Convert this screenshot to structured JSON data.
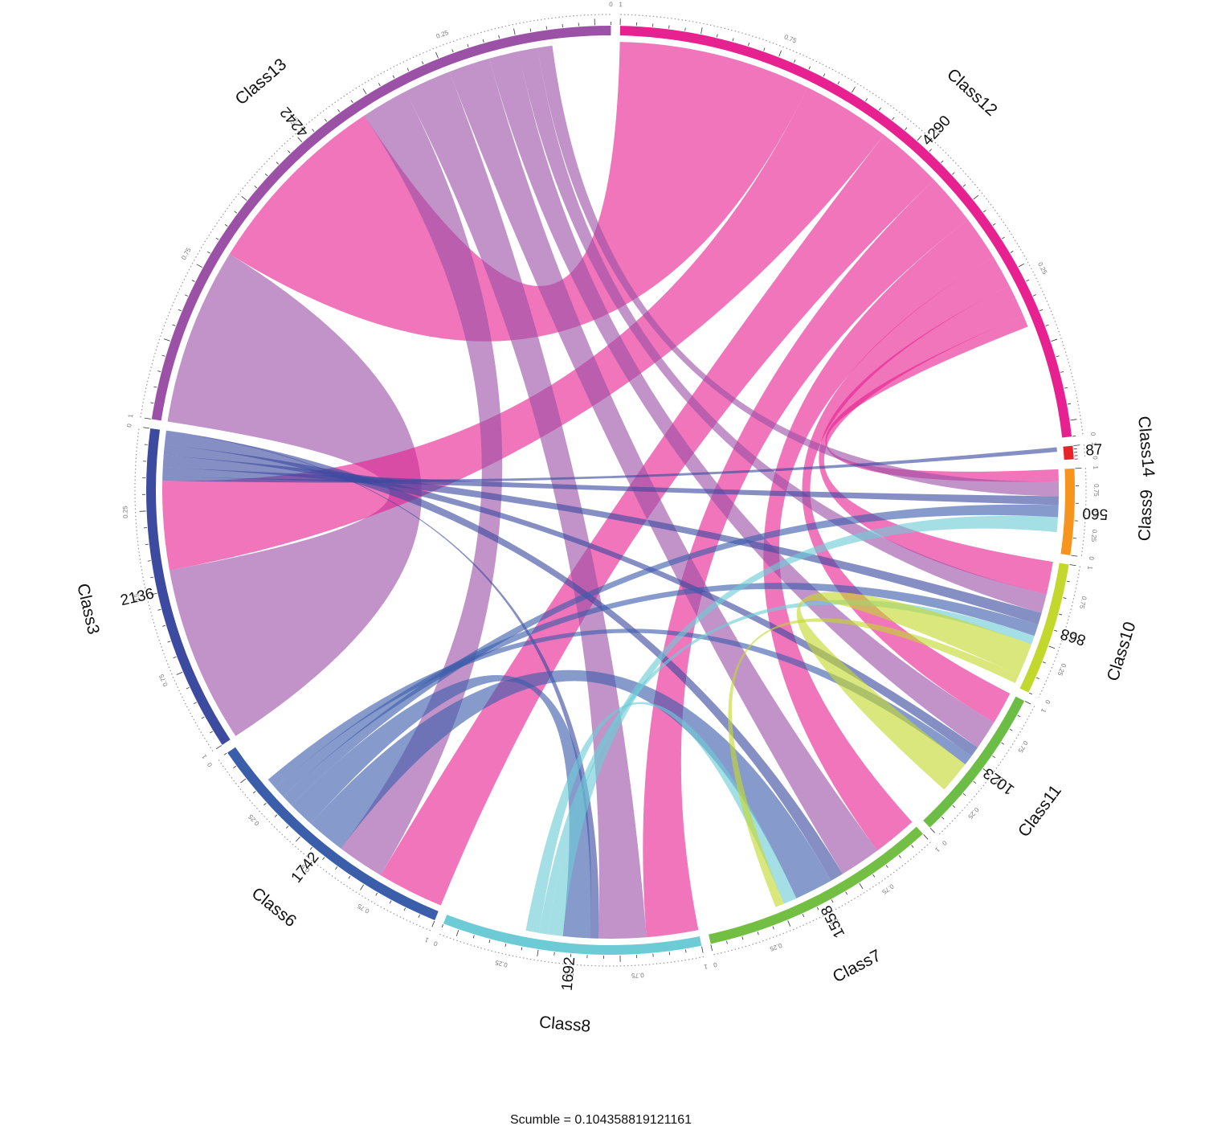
{
  "chart_data": {
    "type": "chord",
    "title": "",
    "subtitle": "Scumble = 0.104358819121161",
    "groups": [
      {
        "name": "Class14",
        "count": 87,
        "color": "#e8232b"
      },
      {
        "name": "Class9",
        "count": 560,
        "color": "#f7941d"
      },
      {
        "name": "Class10",
        "count": 868,
        "color": "#c3d82d"
      },
      {
        "name": "Class11",
        "count": 1023,
        "color": "#6cbd45"
      },
      {
        "name": "Class7",
        "count": 1558,
        "color": "#72bf44"
      },
      {
        "name": "Class8",
        "count": 1692,
        "color": "#6dcbd6"
      },
      {
        "name": "Class6",
        "count": 1742,
        "color": "#3b5eab"
      },
      {
        "name": "Class3",
        "count": 2136,
        "color": "#3c4aa0"
      },
      {
        "name": "Class13",
        "count": 4242,
        "color": "#9b51a6"
      },
      {
        "name": "Class12",
        "count": 4290,
        "color": "#e7218f"
      }
    ],
    "tick_labels": [
      "0",
      "0.25",
      "0.5",
      "0.75",
      "1"
    ],
    "links": [
      {
        "source": "Class13",
        "target": "Class3",
        "value": 1200
      },
      {
        "source": "Class12",
        "target": "Class13",
        "value": 1300
      },
      {
        "source": "Class12",
        "target": "Class3",
        "value": 600
      },
      {
        "source": "Class12",
        "target": "Class6",
        "value": 450
      },
      {
        "source": "Class12",
        "target": "Class8",
        "value": 350
      },
      {
        "source": "Class12",
        "target": "Class7",
        "value": 300
      },
      {
        "source": "Class12",
        "target": "Class11",
        "value": 220
      },
      {
        "source": "Class12",
        "target": "Class10",
        "value": 220
      },
      {
        "source": "Class12",
        "target": "Class9",
        "value": 80
      },
      {
        "source": "Class13",
        "target": "Class6",
        "value": 320
      },
      {
        "source": "Class13",
        "target": "Class8",
        "value": 320
      },
      {
        "source": "Class13",
        "target": "Class7",
        "value": 280
      },
      {
        "source": "Class13",
        "target": "Class11",
        "value": 200
      },
      {
        "source": "Class13",
        "target": "Class10",
        "value": 130
      },
      {
        "source": "Class13",
        "target": "Class9",
        "value": 100
      },
      {
        "source": "Class3",
        "target": "Class14",
        "value": 30
      },
      {
        "source": "Class3",
        "target": "Class9",
        "value": 60
      },
      {
        "source": "Class3",
        "target": "Class10",
        "value": 80
      },
      {
        "source": "Class3",
        "target": "Class11",
        "value": 70
      },
      {
        "source": "Class3",
        "target": "Class7",
        "value": 90
      },
      {
        "source": "Class3",
        "target": "Class8",
        "value": 60
      },
      {
        "source": "Class6",
        "target": "Class7",
        "value": 260
      },
      {
        "source": "Class6",
        "target": "Class8",
        "value": 180
      },
      {
        "source": "Class6",
        "target": "Class9",
        "value": 80
      },
      {
        "source": "Class6",
        "target": "Class10",
        "value": 80
      },
      {
        "source": "Class6",
        "target": "Class11",
        "value": 70
      },
      {
        "source": "Class8",
        "target": "Class9",
        "value": 100
      },
      {
        "source": "Class8",
        "target": "Class10",
        "value": 60
      },
      {
        "source": "Class8",
        "target": "Class7",
        "value": 90
      },
      {
        "source": "Class10",
        "target": "Class11",
        "value": 220
      },
      {
        "source": "Class10",
        "target": "Class7",
        "value": 60
      }
    ]
  }
}
